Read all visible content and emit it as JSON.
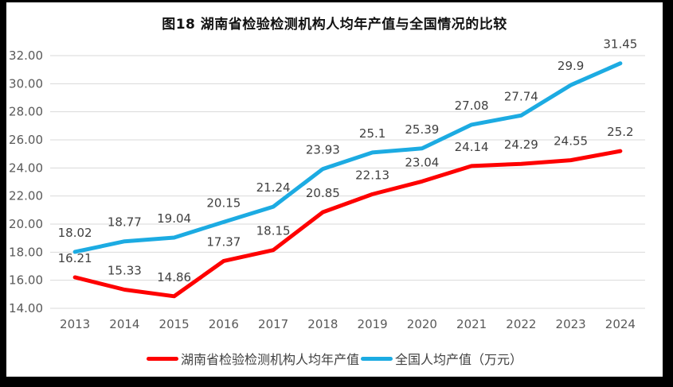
{
  "chart_data": {
    "type": "line",
    "title": "图18 湖南省检验检测机构人均年产值与全国情况的比较",
    "categories": [
      "2013",
      "2014",
      "2015",
      "2016",
      "2017",
      "2018",
      "2019",
      "2020",
      "2021",
      "2022",
      "2023",
      "2024"
    ],
    "series": [
      {
        "name": "全国人均产值（万元）",
        "color": "#1CABE2",
        "values": [
          18.02,
          18.77,
          19.04,
          20.15,
          21.24,
          23.93,
          25.1,
          25.39,
          27.08,
          27.74,
          29.9,
          31.45
        ],
        "labels": [
          "18.02",
          "18.77",
          "19.04",
          "20.15",
          "21.24",
          "23.93",
          "25.1",
          "25.39",
          "27.08",
          "27.74",
          "29.9",
          "31.45"
        ]
      },
      {
        "name": "湖南省检验检测机构人均年产值",
        "color": "#FE0000",
        "values": [
          16.21,
          15.33,
          14.86,
          17.37,
          18.15,
          20.85,
          22.13,
          23.04,
          24.14,
          24.29,
          24.55,
          25.2
        ],
        "labels": [
          "16.21",
          "15.33",
          "14.86",
          "17.37",
          "18.15",
          "20.85",
          "22.13",
          "23.04",
          "24.14",
          "24.29",
          "24.55",
          "25.2"
        ]
      }
    ],
    "ylim": [
      14,
      32
    ],
    "ytick_step": 2,
    "ytick_labels": [
      "14.00",
      "16.00",
      "18.00",
      "20.00",
      "22.00",
      "24.00",
      "26.00",
      "28.00",
      "30.00",
      "32.00"
    ],
    "grid": true,
    "legend_position": "bottom",
    "colors": {
      "grid": "#D9D9D9",
      "axis_text": "#595959",
      "data_label": "#404040",
      "background": "#FFFFFF",
      "frame_border": "#000000"
    }
  },
  "legend": {
    "hunan_label": "湖南省检验检测机构人均年产值",
    "national_label": "全国人均产值（万元）"
  }
}
